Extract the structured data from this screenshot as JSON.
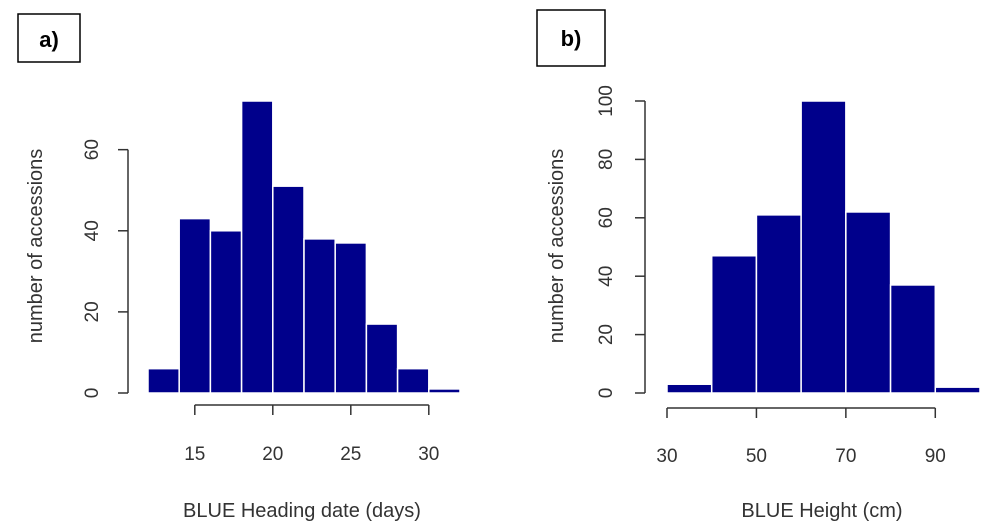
{
  "colors": {
    "bar": "#00008B",
    "bar_edge": "#ffffff",
    "axis": "#333333"
  },
  "chart_data": [
    {
      "type": "bar",
      "panel_label": "a)",
      "title": "",
      "xlabel": "BLUE Heading date (days)",
      "ylabel": "number of accessions",
      "bin_edges": [
        12,
        14,
        16,
        18,
        20,
        22,
        24,
        26,
        28,
        30,
        32
      ],
      "values": [
        6,
        43,
        40,
        72,
        51,
        38,
        37,
        17,
        6,
        1
      ],
      "xticks": [
        15,
        20,
        25,
        30
      ],
      "yticks": [
        0,
        20,
        40,
        60
      ],
      "xlim": [
        12,
        32
      ],
      "ylim": [
        0,
        72
      ]
    },
    {
      "type": "bar",
      "panel_label": "b)",
      "title": "",
      "xlabel": "BLUE Height (cm)",
      "ylabel": "number of accessions",
      "bin_edges": [
        30,
        40,
        50,
        60,
        70,
        80,
        90,
        100
      ],
      "values": [
        3,
        47,
        61,
        100,
        62,
        37,
        2
      ],
      "xticks": [
        30,
        50,
        70,
        90
      ],
      "yticks": [
        0,
        20,
        40,
        60,
        80,
        100
      ],
      "xlim": [
        30,
        100
      ],
      "ylim": [
        0,
        100
      ]
    }
  ]
}
